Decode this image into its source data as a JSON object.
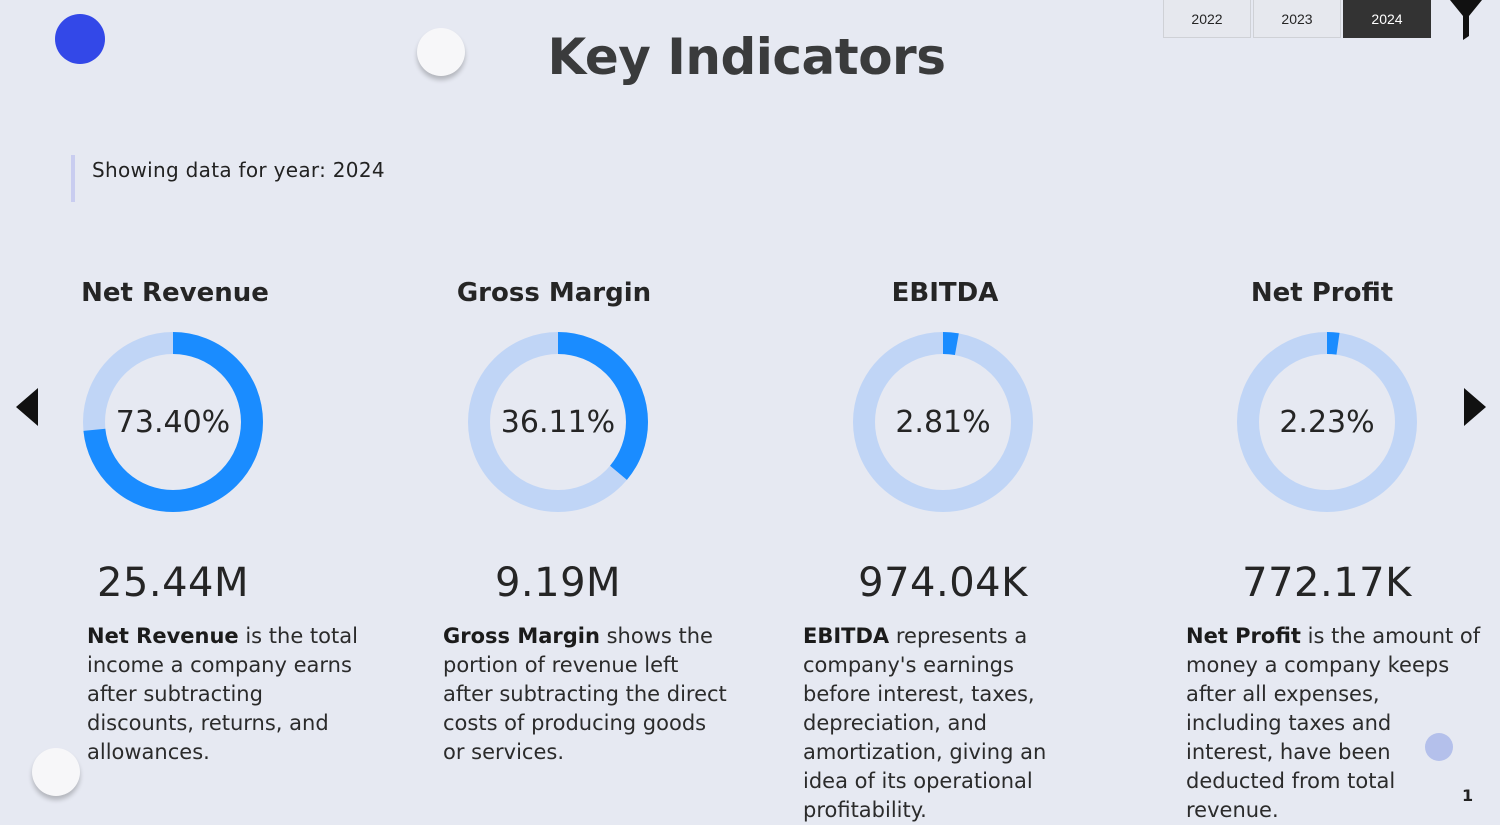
{
  "header": {
    "title": "Key Indicators",
    "years": [
      {
        "label": "2022",
        "active": false
      },
      {
        "label": "2023",
        "active": false
      },
      {
        "label": "2024",
        "active": true
      }
    ]
  },
  "note": "Showing data for year: 2024",
  "colors": {
    "accent": "#1a8cff",
    "track": "#c0d5f6",
    "indicator_dot": "#3348e8"
  },
  "kpis": [
    {
      "title": "Net Revenue",
      "percent": 73.4,
      "percent_label": "73.40%",
      "value": "25.44M",
      "desc_bold": "Net Revenue",
      "desc_rest": " is the total income a company earns after subtracting discounts, returns, and allowances."
    },
    {
      "title": "Gross Margin",
      "percent": 36.11,
      "percent_label": "36.11%",
      "value": "9.19M",
      "desc_bold": "Gross Margin",
      "desc_rest": " shows the portion of revenue left after subtracting the direct costs of producing goods or services."
    },
    {
      "title": "EBITDA",
      "percent": 2.81,
      "percent_label": "2.81%",
      "value": "974.04K",
      "desc_bold": "EBITDA",
      "desc_rest": " represents a company's earnings before interest, taxes, depreciation, and amortization, giving an idea of its operational profitability."
    },
    {
      "title": "Net Profit",
      "percent": 2.23,
      "percent_label": "2.23%",
      "value": "772.17K",
      "desc_bold": "Net Profit",
      "desc_rest": " is the amount of money a company keeps after all expenses, including taxes and interest, have been deducted from total revenue."
    }
  ],
  "page_number": "1"
}
